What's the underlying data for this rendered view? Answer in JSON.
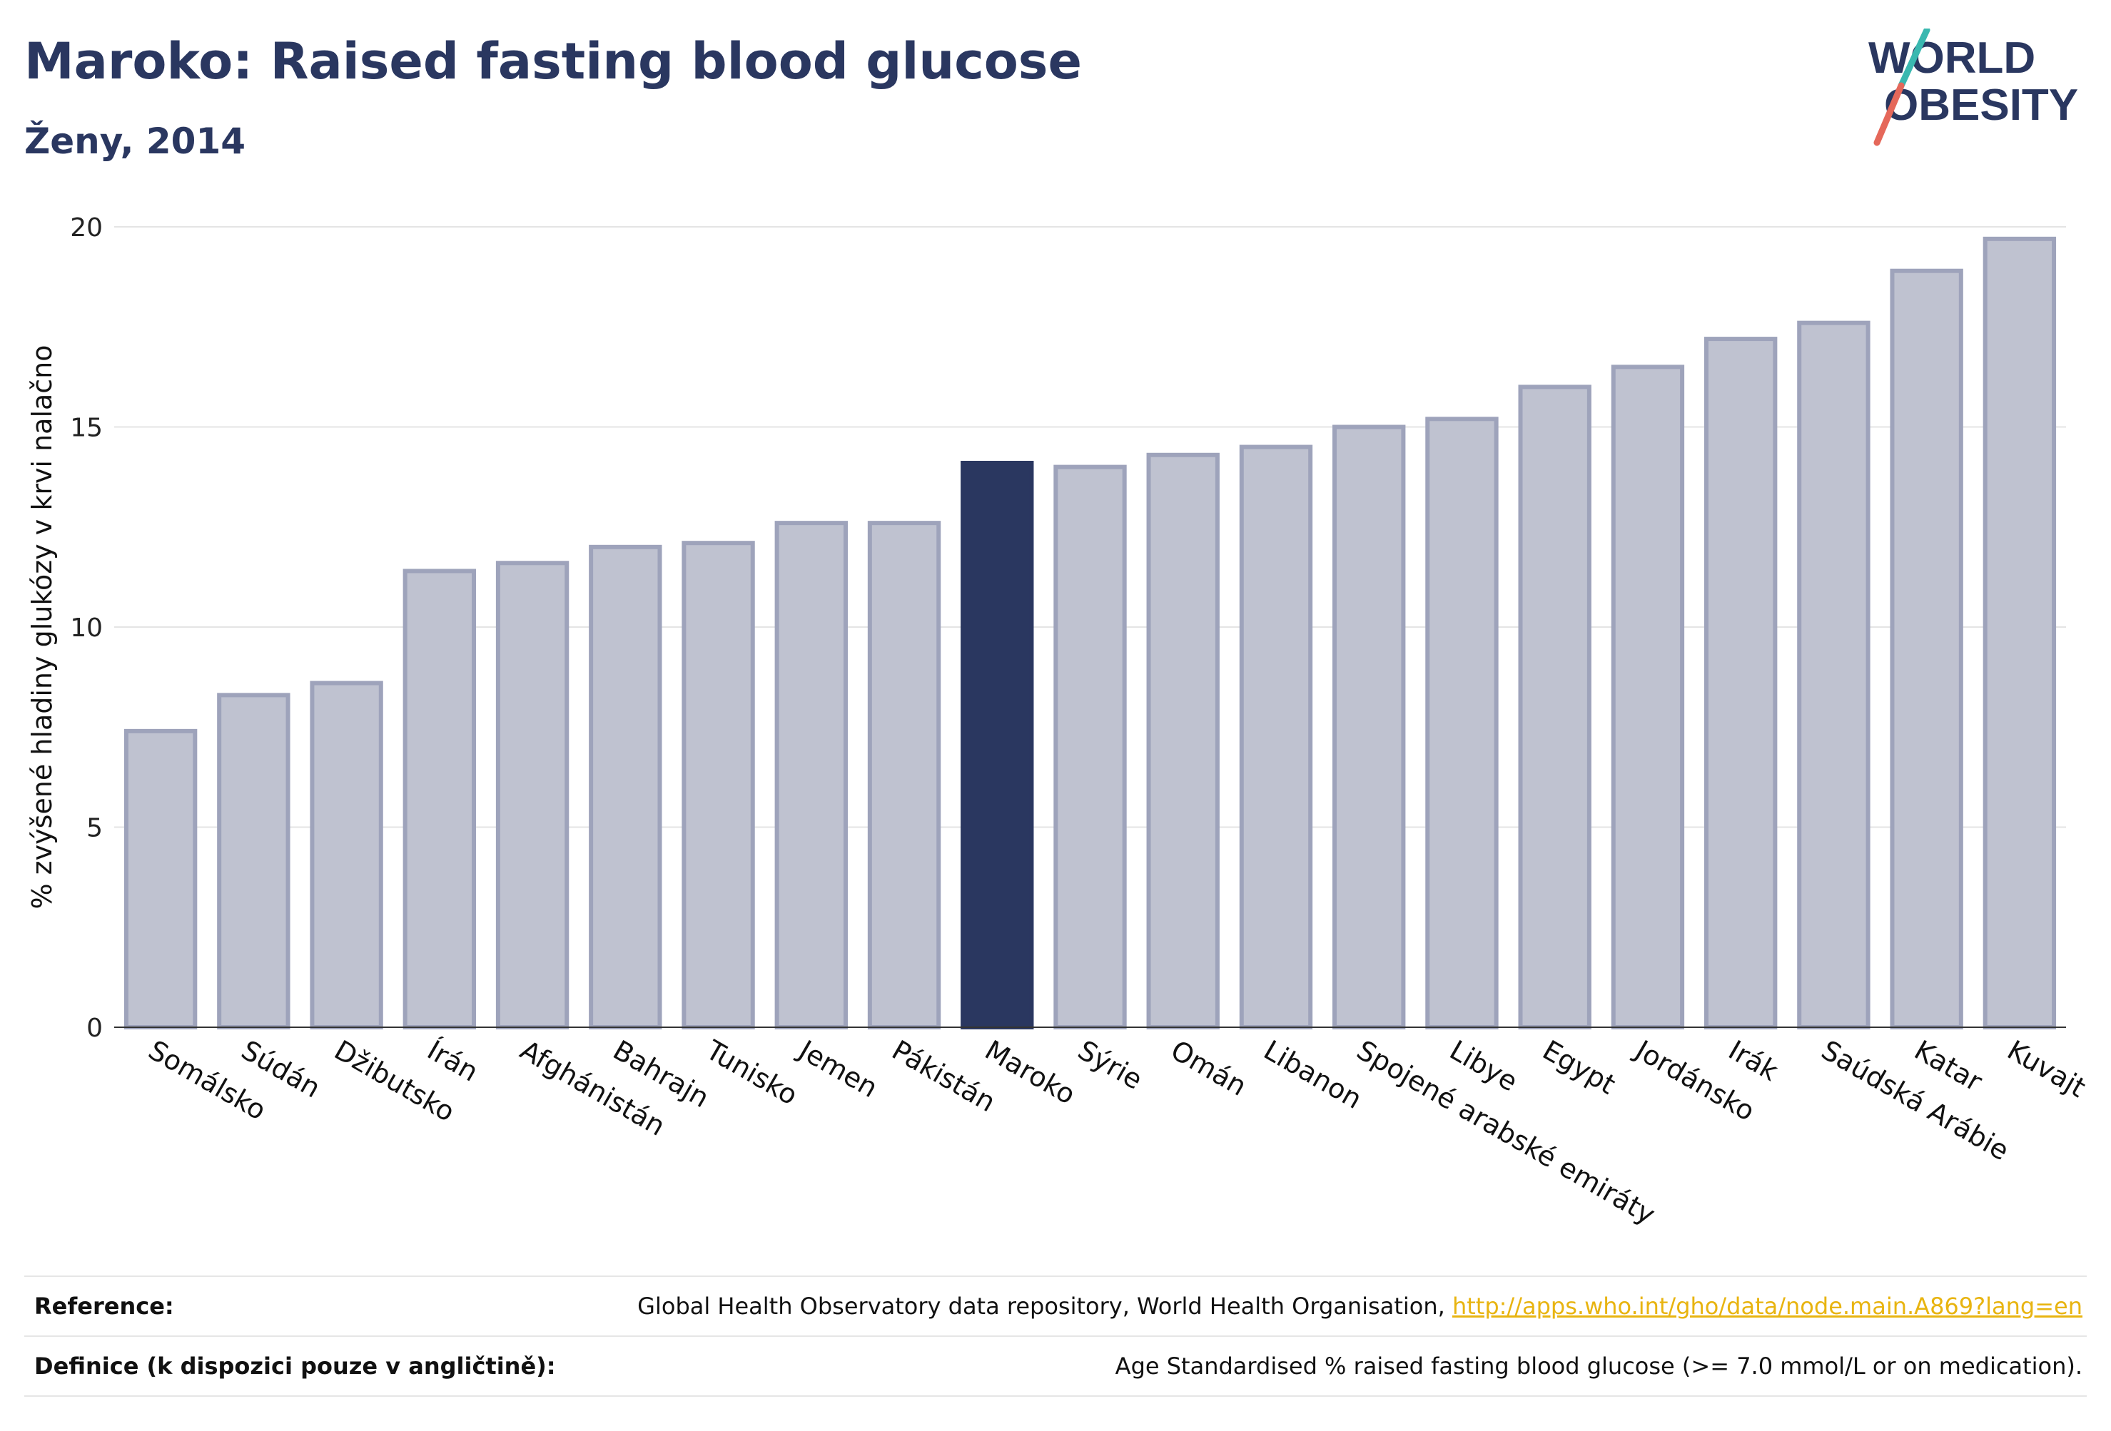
{
  "header": {
    "title": "Maroko: Raised fasting blood glucose",
    "subtitle": "Ženy, 2014"
  },
  "logo": {
    "line1": "WORLD",
    "line2": "OBESITY"
  },
  "colors": {
    "highlight": "#2a3760",
    "bar_fill": "#bfc2d0",
    "bar_stroke": "#9ea3bb",
    "accent_teal": "#3ab8b0",
    "accent_red": "#e5685a"
  },
  "chart_data": {
    "type": "bar",
    "ylabel": "% zvýšené hladiny glukózy v krvi nalačno",
    "ylim": [
      0,
      20
    ],
    "yticks": [
      0,
      5,
      10,
      15,
      20
    ],
    "grid": true,
    "highlight": "Maroko",
    "categories": [
      "Somálsko",
      "Súdán",
      "Džibutsko",
      "Írán",
      "Afghánistán",
      "Bahrajn",
      "Tunisko",
      "Jemen",
      "Pákistán",
      "Maroko",
      "Sýrie",
      "Omán",
      "Libanon",
      "Spojené arabské emiráty",
      "Libye",
      "Egypt",
      "Jordánsko",
      "Irák",
      "Saúdská Arábie",
      "Katar",
      "Kuvajt"
    ],
    "values": [
      7.4,
      8.3,
      8.6,
      11.4,
      11.6,
      12.0,
      12.1,
      12.6,
      12.6,
      14.1,
      14.0,
      14.3,
      14.5,
      15.0,
      15.2,
      16.0,
      16.5,
      17.2,
      17.6,
      18.9,
      19.7
    ]
  },
  "footer": {
    "reference_label": "Reference:",
    "reference_text": "Global Health Observatory data repository, World Health Organisation, ",
    "reference_link": "http://apps.who.int/gho/data/node.main.A869?lang=en",
    "definition_label": "Definice (k dispozici pouze v angličtině):",
    "definition_text": "Age Standardised % raised fasting blood glucose (>= 7.0 mmol/L or on medication)."
  }
}
